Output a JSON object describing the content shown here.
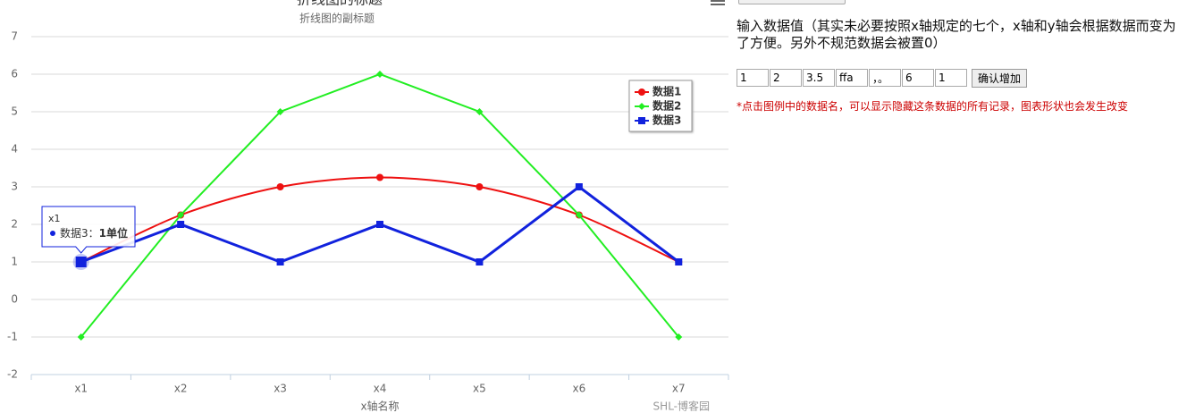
{
  "chart_data": {
    "type": "line",
    "title": "折线图的标题",
    "subtitle": "折线图的副标题",
    "x_label": "x轴名称",
    "credits": "SHL-博客园",
    "categories": [
      "x1",
      "x2",
      "x3",
      "x4",
      "x5",
      "x6",
      "x7"
    ],
    "series": [
      {
        "name": "数据1",
        "color": "#ee1111",
        "marker": "circle",
        "smooth": true,
        "values": [
          1,
          2.25,
          3,
          3.25,
          3,
          2.25,
          1
        ]
      },
      {
        "name": "数据2",
        "color": "#22ee22",
        "marker": "diamond",
        "smooth": false,
        "values": [
          -1,
          2.25,
          5,
          6,
          5,
          2.25,
          -1
        ]
      },
      {
        "name": "数据3",
        "color": "#1122dd",
        "marker": "square",
        "smooth": false,
        "values": [
          1,
          2,
          1,
          2,
          1,
          3,
          1
        ]
      }
    ],
    "ylim": [
      -2,
      7
    ],
    "yticks": [
      -2,
      -1,
      0,
      1,
      2,
      3,
      4,
      5,
      6,
      7
    ],
    "grid": true,
    "legend": "top-right",
    "value_suffix": "单位"
  },
  "form": {
    "intro": "输入数据值（其实未必要按照x轴规定的七个，x轴和y轴会根据数据而变为了方便。另外不规范数据会被置0）",
    "inputs": [
      "1",
      "2",
      "3.5",
      "ffa",
      "，。",
      "6",
      "1"
    ],
    "button": "确认增加",
    "note": "*点击图例中的数据名，可以显示隐藏这条数据的所有记录，图表形状也会发生改变"
  }
}
